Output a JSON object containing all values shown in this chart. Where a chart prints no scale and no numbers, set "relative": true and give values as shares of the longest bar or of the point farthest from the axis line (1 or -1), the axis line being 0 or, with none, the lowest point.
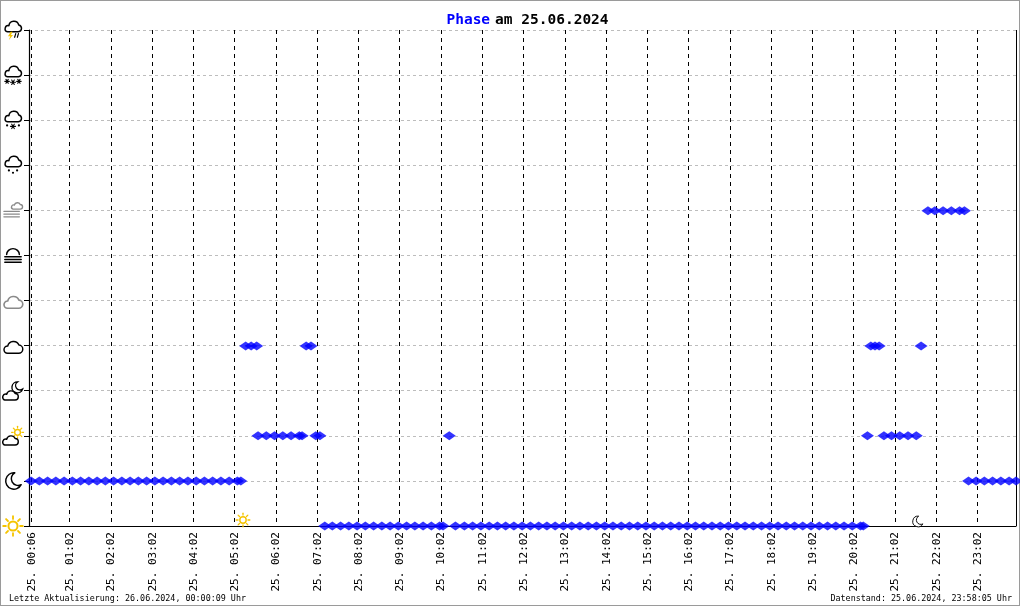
{
  "chart_data": {
    "type": "scatter",
    "title": "Phase am 25.06.2024",
    "annotations": [
      "Letzte Aktualisierung: 26.06.2024, 00:00:09 Uhr",
      "Datenstand: 25.06.2024, 23:58:05 Uhr"
    ],
    "x": [
      "2024-06-25T00:06",
      "2024-06-25T00:18",
      "2024-06-25T00:30",
      "2024-06-25T00:42",
      "2024-06-25T00:54",
      "2024-06-25T01:06",
      "2024-06-25T01:18",
      "2024-06-25T01:30",
      "2024-06-25T01:42",
      "2024-06-25T01:54",
      "2024-06-25T02:06",
      "2024-06-25T02:18",
      "2024-06-25T02:30",
      "2024-06-25T02:42",
      "2024-06-25T02:54",
      "2024-06-25T03:06",
      "2024-06-25T03:18",
      "2024-06-25T03:30",
      "2024-06-25T03:42",
      "2024-06-25T03:54",
      "2024-06-25T04:06",
      "2024-06-25T04:18",
      "2024-06-25T04:30",
      "2024-06-25T04:42",
      "2024-06-25T04:54",
      "2024-06-25T05:06",
      "2024-06-25T05:11",
      "2024-06-25T05:18",
      "2024-06-25T05:26",
      "2024-06-25T05:34",
      "2024-06-25T05:36",
      "2024-06-25T05:48",
      "2024-06-25T06:00",
      "2024-06-25T06:12",
      "2024-06-25T06:24",
      "2024-06-25T06:36",
      "2024-06-25T06:40",
      "2024-06-25T06:46",
      "2024-06-25T06:53",
      "2024-06-25T07:00",
      "2024-06-25T07:06",
      "2024-06-25T07:13",
      "2024-06-25T07:24",
      "2024-06-25T07:36",
      "2024-06-25T07:48",
      "2024-06-25T08:00",
      "2024-06-25T08:12",
      "2024-06-25T08:24",
      "2024-06-25T08:36",
      "2024-06-25T08:48",
      "2024-06-25T09:00",
      "2024-06-25T09:12",
      "2024-06-25T09:24",
      "2024-06-25T09:36",
      "2024-06-25T09:48",
      "2024-06-25T10:00",
      "2024-06-25T10:05",
      "2024-06-25T10:14",
      "2024-06-25T10:23",
      "2024-06-25T10:36",
      "2024-06-25T10:48",
      "2024-06-25T11:00",
      "2024-06-25T11:12",
      "2024-06-25T11:24",
      "2024-06-25T11:36",
      "2024-06-25T11:48",
      "2024-06-25T12:00",
      "2024-06-25T12:12",
      "2024-06-25T12:24",
      "2024-06-25T12:36",
      "2024-06-25T12:48",
      "2024-06-25T13:00",
      "2024-06-25T13:12",
      "2024-06-25T13:24",
      "2024-06-25T13:36",
      "2024-06-25T13:48",
      "2024-06-25T14:00",
      "2024-06-25T14:12",
      "2024-06-25T14:24",
      "2024-06-25T14:36",
      "2024-06-25T14:48",
      "2024-06-25T15:00",
      "2024-06-25T15:12",
      "2024-06-25T15:24",
      "2024-06-25T15:36",
      "2024-06-25T15:48",
      "2024-06-25T16:00",
      "2024-06-25T16:12",
      "2024-06-25T16:24",
      "2024-06-25T16:36",
      "2024-06-25T16:48",
      "2024-06-25T17:00",
      "2024-06-25T17:12",
      "2024-06-25T17:24",
      "2024-06-25T17:36",
      "2024-06-25T17:48",
      "2024-06-25T18:00",
      "2024-06-25T18:12",
      "2024-06-25T18:24",
      "2024-06-25T18:36",
      "2024-06-25T18:48",
      "2024-06-25T19:00",
      "2024-06-25T19:12",
      "2024-06-25T19:24",
      "2024-06-25T19:36",
      "2024-06-25T19:48",
      "2024-06-25T20:00",
      "2024-06-25T20:12",
      "2024-06-25T20:16",
      "2024-06-25T20:22",
      "2024-06-25T20:27",
      "2024-06-25T20:33",
      "2024-06-25T20:39",
      "2024-06-25T20:46",
      "2024-06-25T20:57",
      "2024-06-25T21:09",
      "2024-06-25T21:21",
      "2024-06-25T21:33",
      "2024-06-25T21:40",
      "2024-06-25T21:50",
      "2024-06-25T22:00",
      "2024-06-25T22:12",
      "2024-06-25T22:24",
      "2024-06-25T22:36",
      "2024-06-25T22:43",
      "2024-06-25T22:49",
      "2024-06-25T23:00",
      "2024-06-25T23:12",
      "2024-06-25T23:24",
      "2024-06-25T23:36",
      "2024-06-25T23:48",
      "2024-06-25T23:58"
    ],
    "series": [
      {
        "color": "#0000ff",
        "values": [
          0.143,
          0.143,
          0.143,
          0.143,
          0.143,
          0.143,
          0.143,
          0.143,
          0.143,
          0.143,
          0.143,
          0.143,
          0.143,
          0.143,
          0.143,
          0.143,
          0.143,
          0.143,
          0.143,
          0.143,
          0.143,
          0.143,
          0.143,
          0.143,
          0.143,
          0.143,
          0.143,
          0.571,
          0.571,
          0.571,
          0.286,
          0.286,
          0.286,
          0.286,
          0.286,
          0.286,
          0.286,
          0.571,
          0.571,
          0.286,
          0.286,
          0,
          0,
          0,
          0,
          0,
          0,
          0,
          0,
          0,
          0,
          0,
          0,
          0,
          0,
          0,
          0,
          0.286,
          0,
          0,
          0,
          0,
          0,
          0,
          0,
          0,
          0,
          0,
          0,
          0,
          0,
          0,
          0,
          0,
          0,
          0,
          0,
          0,
          0,
          0,
          0,
          0,
          0,
          0,
          0,
          0,
          0,
          0,
          0,
          0,
          0,
          0,
          0,
          0,
          0,
          0,
          0,
          0,
          0,
          0,
          0,
          0,
          0,
          0,
          0,
          0,
          0,
          0,
          0,
          0.286,
          0.571,
          0.571,
          0.571,
          0.286,
          0.286,
          0.286,
          0.286,
          0.286,
          0.571,
          1,
          1,
          1,
          1,
          1,
          1,
          0.143,
          0.143,
          0.143,
          0.143,
          0.143,
          0.143,
          0.143
        ]
      }
    ],
    "relative": true,
    "marker": "diamond",
    "xlim": [
      "2024-06-25T00:03",
      "2024-06-25T23:58"
    ],
    "xticks": [
      {
        "value": "2024-06-25T00:06",
        "label": "25. 00:06"
      },
      {
        "value": "2024-06-25T01:02",
        "label": "25. 01:02"
      },
      {
        "value": "2024-06-25T02:02",
        "label": "25. 02:02"
      },
      {
        "value": "2024-06-25T03:02",
        "label": "25. 03:02"
      },
      {
        "value": "2024-06-25T04:02",
        "label": "25. 04:02"
      },
      {
        "value": "2024-06-25T05:02",
        "label": "25. 05:02"
      },
      {
        "value": "2024-06-25T06:02",
        "label": "25. 06:02"
      },
      {
        "value": "2024-06-25T07:02",
        "label": "25. 07:02"
      },
      {
        "value": "2024-06-25T08:02",
        "label": "25. 08:02"
      },
      {
        "value": "2024-06-25T09:02",
        "label": "25. 09:02"
      },
      {
        "value": "2024-06-25T10:02",
        "label": "25. 10:02"
      },
      {
        "value": "2024-06-25T11:02",
        "label": "25. 11:02"
      },
      {
        "value": "2024-06-25T12:02",
        "label": "25. 12:02"
      },
      {
        "value": "2024-06-25T13:02",
        "label": "25. 13:02"
      },
      {
        "value": "2024-06-25T14:02",
        "label": "25. 14:02"
      },
      {
        "value": "2024-06-25T15:02",
        "label": "25. 15:02"
      },
      {
        "value": "2024-06-25T16:02",
        "label": "25. 16:02"
      },
      {
        "value": "2024-06-25T17:02",
        "label": "25. 17:02"
      },
      {
        "value": "2024-06-25T18:02",
        "label": "25. 18:02"
      },
      {
        "value": "2024-06-25T19:02",
        "label": "25. 19:02"
      },
      {
        "value": "2024-06-25T20:02",
        "label": "25. 20:02"
      },
      {
        "value": "2024-06-25T21:02",
        "label": "25. 21:02"
      },
      {
        "value": "2024-06-25T22:02",
        "label": "25. 22:02"
      },
      {
        "value": "2024-06-25T23:02",
        "label": "25. 23:02"
      }
    ],
    "tick_labels": "x",
    "grid": true
  }
}
